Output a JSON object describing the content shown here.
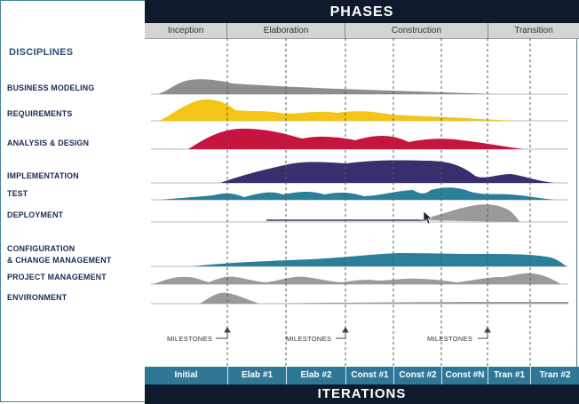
{
  "header": {
    "title": "PHASES"
  },
  "phases": [
    "Inception",
    "Elaboration",
    "Construction",
    "Transition"
  ],
  "disciplines_heading": "DISCIPLINES",
  "disciplines": [
    "BUSINESS MODELING",
    "REQUIREMENTS",
    "ANALYSIS & DESIGN",
    "IMPLEMENTATION",
    "TEST",
    "DEPLOYMENT",
    "CONFIGURATION",
    "& CHANGE MANAGEMENT",
    "PROJECT MANAGEMENT",
    "ENVIRONMENT"
  ],
  "milestones": [
    "MILESTONES",
    "MILESTONES",
    "MILESTONES"
  ],
  "iterations": [
    "Initial",
    "Elab #1",
    "Elab #2",
    "Const #1",
    "Const #2",
    "Const #N",
    "Tran #1",
    "Tran #2"
  ],
  "footer": {
    "title": "ITERATIONS"
  },
  "colors": {
    "business_modeling": "#8e8e8e",
    "requirements": "#f2c516",
    "analysis_design": "#c7143f",
    "implementation": "#3a2f6e",
    "test": "#2a7f9a",
    "deployment": "#9a9a9a",
    "config_change": "#2a7f9a",
    "project_management": "#9a9a9a",
    "environment": "#9a9a9a",
    "header_bg": "#0f1b2d",
    "iteration_bg": "#2f7797"
  }
}
